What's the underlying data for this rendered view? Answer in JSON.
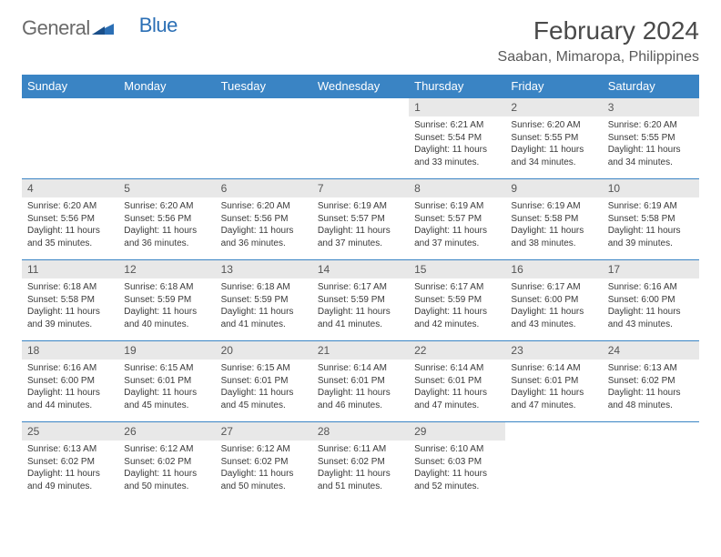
{
  "logo": {
    "text1": "General",
    "text2": "Blue"
  },
  "title": "February 2024",
  "location": "Saaban, Mimaropa, Philippines",
  "colors": {
    "header_bg": "#3a84c4",
    "header_text": "#ffffff",
    "row_border": "#3a84c4",
    "daynum_bg": "#e8e8e8",
    "text": "#3a3a3a",
    "logo_gray": "#6a6a6a",
    "logo_blue": "#2b6fb5"
  },
  "day_names": [
    "Sunday",
    "Monday",
    "Tuesday",
    "Wednesday",
    "Thursday",
    "Friday",
    "Saturday"
  ],
  "weeks": [
    [
      {
        "n": "",
        "sr": "",
        "ss": "",
        "dl": ""
      },
      {
        "n": "",
        "sr": "",
        "ss": "",
        "dl": ""
      },
      {
        "n": "",
        "sr": "",
        "ss": "",
        "dl": ""
      },
      {
        "n": "",
        "sr": "",
        "ss": "",
        "dl": ""
      },
      {
        "n": "1",
        "sr": "Sunrise: 6:21 AM",
        "ss": "Sunset: 5:54 PM",
        "dl": "Daylight: 11 hours and 33 minutes."
      },
      {
        "n": "2",
        "sr": "Sunrise: 6:20 AM",
        "ss": "Sunset: 5:55 PM",
        "dl": "Daylight: 11 hours and 34 minutes."
      },
      {
        "n": "3",
        "sr": "Sunrise: 6:20 AM",
        "ss": "Sunset: 5:55 PM",
        "dl": "Daylight: 11 hours and 34 minutes."
      }
    ],
    [
      {
        "n": "4",
        "sr": "Sunrise: 6:20 AM",
        "ss": "Sunset: 5:56 PM",
        "dl": "Daylight: 11 hours and 35 minutes."
      },
      {
        "n": "5",
        "sr": "Sunrise: 6:20 AM",
        "ss": "Sunset: 5:56 PM",
        "dl": "Daylight: 11 hours and 36 minutes."
      },
      {
        "n": "6",
        "sr": "Sunrise: 6:20 AM",
        "ss": "Sunset: 5:56 PM",
        "dl": "Daylight: 11 hours and 36 minutes."
      },
      {
        "n": "7",
        "sr": "Sunrise: 6:19 AM",
        "ss": "Sunset: 5:57 PM",
        "dl": "Daylight: 11 hours and 37 minutes."
      },
      {
        "n": "8",
        "sr": "Sunrise: 6:19 AM",
        "ss": "Sunset: 5:57 PM",
        "dl": "Daylight: 11 hours and 37 minutes."
      },
      {
        "n": "9",
        "sr": "Sunrise: 6:19 AM",
        "ss": "Sunset: 5:58 PM",
        "dl": "Daylight: 11 hours and 38 minutes."
      },
      {
        "n": "10",
        "sr": "Sunrise: 6:19 AM",
        "ss": "Sunset: 5:58 PM",
        "dl": "Daylight: 11 hours and 39 minutes."
      }
    ],
    [
      {
        "n": "11",
        "sr": "Sunrise: 6:18 AM",
        "ss": "Sunset: 5:58 PM",
        "dl": "Daylight: 11 hours and 39 minutes."
      },
      {
        "n": "12",
        "sr": "Sunrise: 6:18 AM",
        "ss": "Sunset: 5:59 PM",
        "dl": "Daylight: 11 hours and 40 minutes."
      },
      {
        "n": "13",
        "sr": "Sunrise: 6:18 AM",
        "ss": "Sunset: 5:59 PM",
        "dl": "Daylight: 11 hours and 41 minutes."
      },
      {
        "n": "14",
        "sr": "Sunrise: 6:17 AM",
        "ss": "Sunset: 5:59 PM",
        "dl": "Daylight: 11 hours and 41 minutes."
      },
      {
        "n": "15",
        "sr": "Sunrise: 6:17 AM",
        "ss": "Sunset: 5:59 PM",
        "dl": "Daylight: 11 hours and 42 minutes."
      },
      {
        "n": "16",
        "sr": "Sunrise: 6:17 AM",
        "ss": "Sunset: 6:00 PM",
        "dl": "Daylight: 11 hours and 43 minutes."
      },
      {
        "n": "17",
        "sr": "Sunrise: 6:16 AM",
        "ss": "Sunset: 6:00 PM",
        "dl": "Daylight: 11 hours and 43 minutes."
      }
    ],
    [
      {
        "n": "18",
        "sr": "Sunrise: 6:16 AM",
        "ss": "Sunset: 6:00 PM",
        "dl": "Daylight: 11 hours and 44 minutes."
      },
      {
        "n": "19",
        "sr": "Sunrise: 6:15 AM",
        "ss": "Sunset: 6:01 PM",
        "dl": "Daylight: 11 hours and 45 minutes."
      },
      {
        "n": "20",
        "sr": "Sunrise: 6:15 AM",
        "ss": "Sunset: 6:01 PM",
        "dl": "Daylight: 11 hours and 45 minutes."
      },
      {
        "n": "21",
        "sr": "Sunrise: 6:14 AM",
        "ss": "Sunset: 6:01 PM",
        "dl": "Daylight: 11 hours and 46 minutes."
      },
      {
        "n": "22",
        "sr": "Sunrise: 6:14 AM",
        "ss": "Sunset: 6:01 PM",
        "dl": "Daylight: 11 hours and 47 minutes."
      },
      {
        "n": "23",
        "sr": "Sunrise: 6:14 AM",
        "ss": "Sunset: 6:01 PM",
        "dl": "Daylight: 11 hours and 47 minutes."
      },
      {
        "n": "24",
        "sr": "Sunrise: 6:13 AM",
        "ss": "Sunset: 6:02 PM",
        "dl": "Daylight: 11 hours and 48 minutes."
      }
    ],
    [
      {
        "n": "25",
        "sr": "Sunrise: 6:13 AM",
        "ss": "Sunset: 6:02 PM",
        "dl": "Daylight: 11 hours and 49 minutes."
      },
      {
        "n": "26",
        "sr": "Sunrise: 6:12 AM",
        "ss": "Sunset: 6:02 PM",
        "dl": "Daylight: 11 hours and 50 minutes."
      },
      {
        "n": "27",
        "sr": "Sunrise: 6:12 AM",
        "ss": "Sunset: 6:02 PM",
        "dl": "Daylight: 11 hours and 50 minutes."
      },
      {
        "n": "28",
        "sr": "Sunrise: 6:11 AM",
        "ss": "Sunset: 6:02 PM",
        "dl": "Daylight: 11 hours and 51 minutes."
      },
      {
        "n": "29",
        "sr": "Sunrise: 6:10 AM",
        "ss": "Sunset: 6:03 PM",
        "dl": "Daylight: 11 hours and 52 minutes."
      },
      {
        "n": "",
        "sr": "",
        "ss": "",
        "dl": ""
      },
      {
        "n": "",
        "sr": "",
        "ss": "",
        "dl": ""
      }
    ]
  ]
}
